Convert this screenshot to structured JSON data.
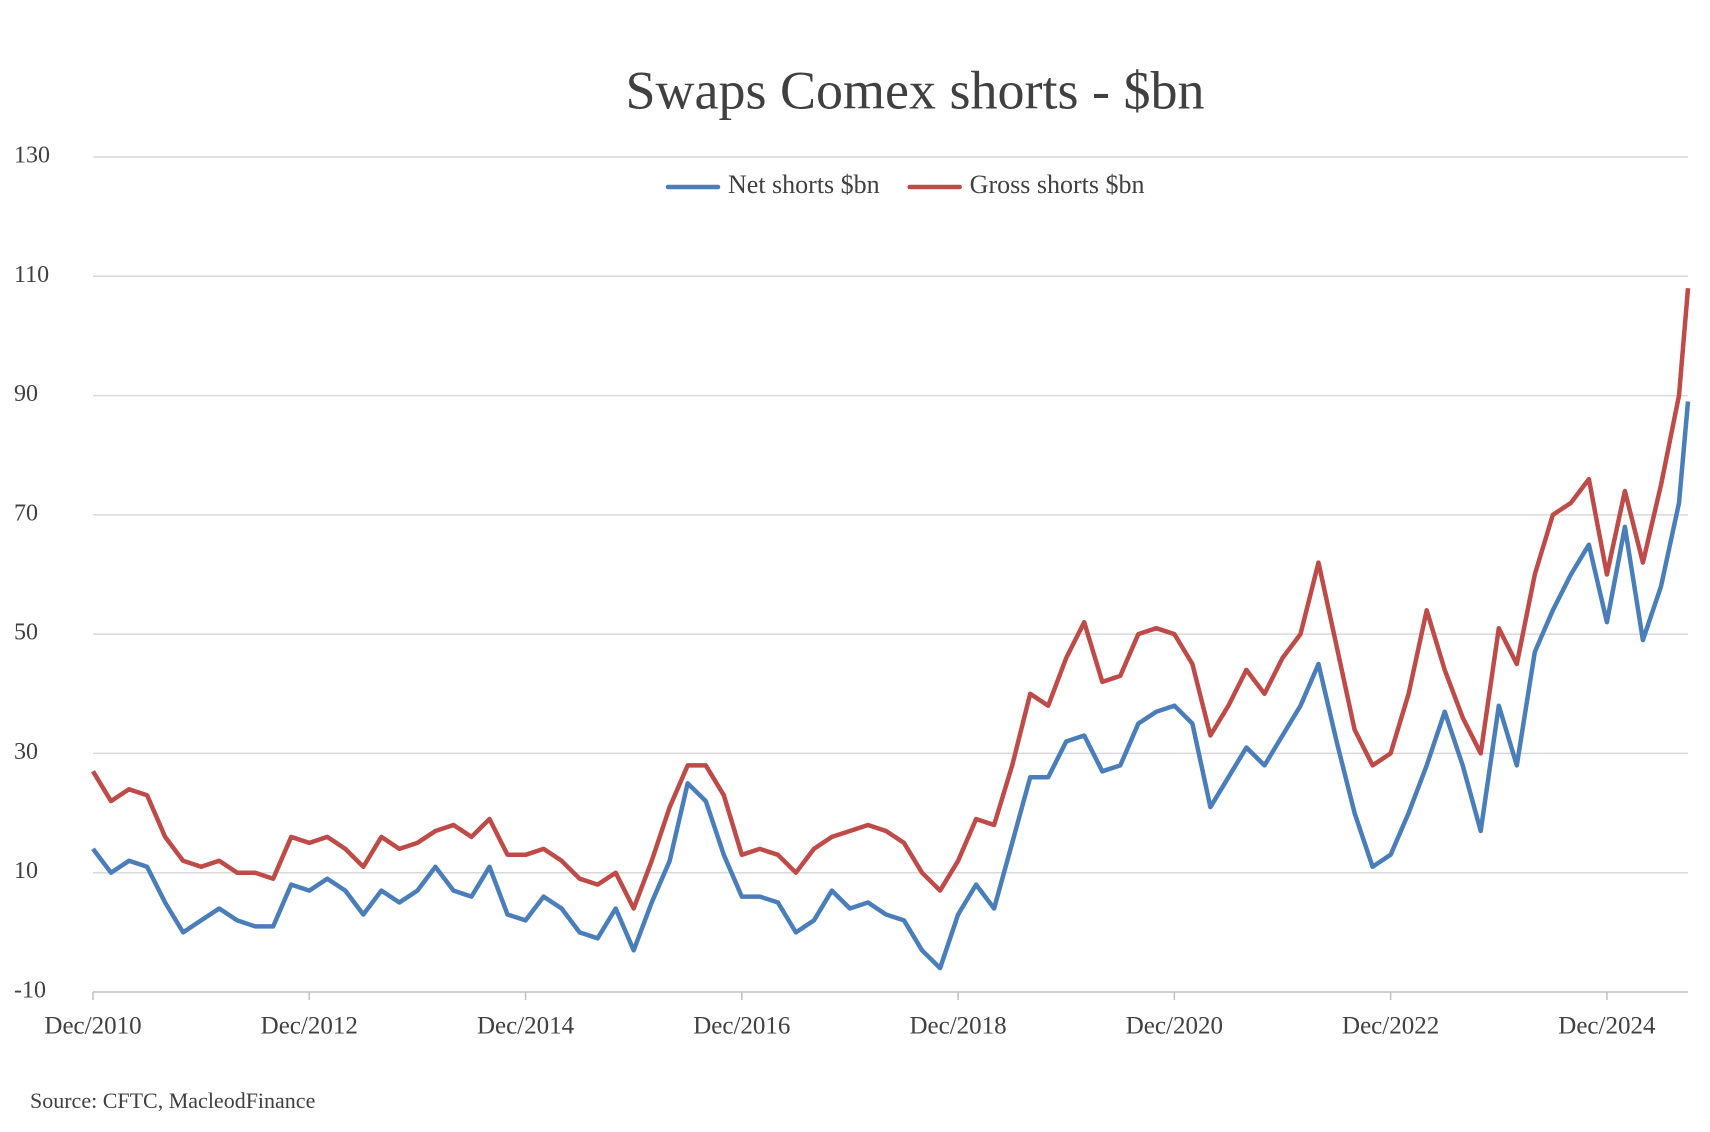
{
  "chart_data": {
    "type": "line",
    "title": "Swaps Comex shorts - $bn",
    "source": "Source: CFTC, MacleodFinance",
    "x": [
      "Dec/2010",
      "Feb/2011",
      "Apr/2011",
      "Jun/2011",
      "Aug/2011",
      "Oct/2011",
      "Dec/2011",
      "Feb/2012",
      "Apr/2012",
      "Jun/2012",
      "Aug/2012",
      "Oct/2012",
      "Dec/2012",
      "Feb/2013",
      "Apr/2013",
      "Jun/2013",
      "Aug/2013",
      "Oct/2013",
      "Dec/2013",
      "Feb/2014",
      "Apr/2014",
      "Jun/2014",
      "Aug/2014",
      "Oct/2014",
      "Dec/2014",
      "Feb/2015",
      "Apr/2015",
      "Jun/2015",
      "Aug/2015",
      "Oct/2015",
      "Dec/2015",
      "Feb/2016",
      "Apr/2016",
      "Jun/2016",
      "Aug/2016",
      "Oct/2016",
      "Dec/2016",
      "Feb/2017",
      "Apr/2017",
      "Jun/2017",
      "Aug/2017",
      "Oct/2017",
      "Dec/2017",
      "Feb/2018",
      "Apr/2018",
      "Jun/2018",
      "Aug/2018",
      "Oct/2018",
      "Dec/2018",
      "Feb/2019",
      "Apr/2019",
      "Jun/2019",
      "Aug/2019",
      "Oct/2019",
      "Dec/2019",
      "Feb/2020",
      "Apr/2020",
      "Jun/2020",
      "Aug/2020",
      "Oct/2020",
      "Dec/2020",
      "Feb/2021",
      "Apr/2021",
      "Jun/2021",
      "Aug/2021",
      "Oct/2021",
      "Dec/2021",
      "Feb/2022",
      "Apr/2022",
      "Jun/2022",
      "Aug/2022",
      "Oct/2022",
      "Dec/2022",
      "Feb/2023",
      "Apr/2023",
      "Jun/2023",
      "Aug/2023",
      "Oct/2023",
      "Dec/2023",
      "Feb/2024",
      "Apr/2024",
      "Jun/2024",
      "Aug/2024",
      "Oct/2024",
      "Dec/2024",
      "Feb/2025",
      "Apr/2025",
      "Jun/2025",
      "Aug/2025",
      "Sep/2025"
    ],
    "series": [
      {
        "name": "Net shorts $bn",
        "color": "#4a7ebb",
        "values": [
          14,
          10,
          12,
          11,
          5,
          0,
          2,
          4,
          2,
          1,
          1,
          8,
          7,
          9,
          7,
          3,
          7,
          5,
          7,
          11,
          7,
          6,
          11,
          3,
          2,
          6,
          4,
          0,
          -1,
          4,
          -3,
          5,
          12,
          25,
          22,
          13,
          6,
          6,
          5,
          0,
          2,
          7,
          4,
          5,
          3,
          2,
          -3,
          -6,
          3,
          8,
          4,
          15,
          26,
          26,
          32,
          33,
          27,
          28,
          35,
          37,
          38,
          35,
          21,
          26,
          31,
          28,
          33,
          38,
          45,
          32,
          20,
          11,
          13,
          20,
          28,
          37,
          28,
          17,
          38,
          28,
          47,
          54,
          60,
          65,
          52,
          68,
          49,
          58,
          72,
          89
        ]
      },
      {
        "name": "Gross shorts $bn",
        "color": "#be4b48",
        "values": [
          27,
          22,
          24,
          23,
          16,
          12,
          11,
          12,
          10,
          10,
          9,
          16,
          15,
          16,
          14,
          11,
          16,
          14,
          15,
          17,
          18,
          16,
          19,
          13,
          13,
          14,
          12,
          9,
          8,
          10,
          4,
          12,
          21,
          28,
          28,
          23,
          13,
          14,
          13,
          10,
          14,
          16,
          17,
          18,
          17,
          15,
          10,
          7,
          12,
          19,
          18,
          28,
          40,
          38,
          46,
          52,
          42,
          43,
          50,
          51,
          50,
          45,
          33,
          38,
          44,
          40,
          46,
          50,
          62,
          48,
          34,
          28,
          30,
          40,
          54,
          44,
          36,
          30,
          51,
          45,
          60,
          70,
          72,
          76,
          60,
          74,
          62,
          75,
          90,
          108
        ]
      }
    ],
    "xlim": [
      "Dec/2010",
      "Sep/2025"
    ],
    "xticks": [
      "Dec/2010",
      "Dec/2012",
      "Dec/2014",
      "Dec/2016",
      "Dec/2018",
      "Dec/2020",
      "Dec/2022",
      "Dec/2024"
    ],
    "ylim": [
      -10,
      130
    ],
    "yticks": [
      -10,
      10,
      30,
      50,
      70,
      90,
      110,
      130
    ],
    "grid": true,
    "legend": "top"
  }
}
